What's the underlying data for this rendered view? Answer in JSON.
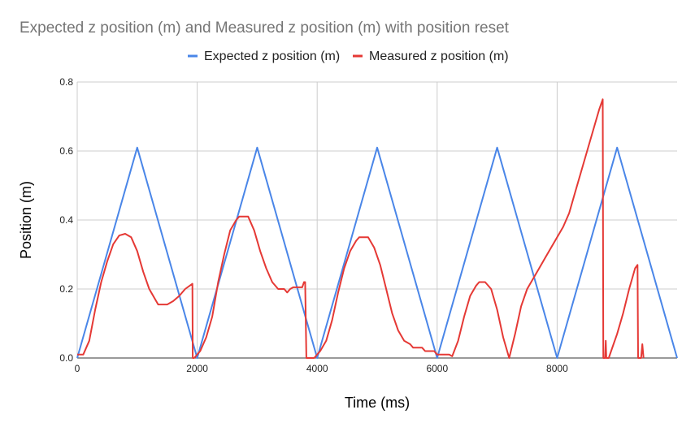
{
  "chart_data": {
    "type": "line",
    "title": "Expected z position (m) and Measured z position (m) with position reset",
    "xlabel": "Time (ms)",
    "ylabel": "Position (m)",
    "xlim": [
      0,
      10000
    ],
    "ylim": [
      0,
      0.8
    ],
    "x_ticks": [
      0,
      2000,
      4000,
      6000,
      8000
    ],
    "y_ticks": [
      0.0,
      0.2,
      0.4,
      0.6,
      0.8
    ],
    "x_tick_labels": [
      "0",
      "2000",
      "4000",
      "6000",
      "8000"
    ],
    "y_tick_labels": [
      "0.0",
      "0.2",
      "0.4",
      "0.6",
      "0.8"
    ],
    "grid": true,
    "legend_position": "top",
    "series": [
      {
        "name": "Expected z position (m)",
        "color": "#4a86e8",
        "points": [
          [
            0,
            0.0
          ],
          [
            1000,
            0.61
          ],
          [
            2000,
            0.0
          ],
          [
            3000,
            0.61
          ],
          [
            4000,
            0.0
          ],
          [
            5000,
            0.61
          ],
          [
            6000,
            0.0
          ],
          [
            7000,
            0.61
          ],
          [
            8000,
            0.0
          ],
          [
            9000,
            0.61
          ],
          [
            10000,
            0.0
          ]
        ]
      },
      {
        "name": "Measured z position (m)",
        "color": "#e53935",
        "points": [
          [
            0,
            0.01
          ],
          [
            100,
            0.01
          ],
          [
            200,
            0.05
          ],
          [
            300,
            0.14
          ],
          [
            400,
            0.22
          ],
          [
            500,
            0.28
          ],
          [
            600,
            0.33
          ],
          [
            700,
            0.355
          ],
          [
            800,
            0.36
          ],
          [
            900,
            0.35
          ],
          [
            1000,
            0.31
          ],
          [
            1100,
            0.25
          ],
          [
            1200,
            0.2
          ],
          [
            1300,
            0.17
          ],
          [
            1350,
            0.155
          ],
          [
            1500,
            0.155
          ],
          [
            1550,
            0.16
          ],
          [
            1600,
            0.165
          ],
          [
            1700,
            0.18
          ],
          [
            1800,
            0.2
          ],
          [
            1920,
            0.215
          ],
          [
            1925,
            0.0
          ],
          [
            1950,
            0.0
          ],
          [
            2050,
            0.02
          ],
          [
            2150,
            0.06
          ],
          [
            2250,
            0.12
          ],
          [
            2350,
            0.22
          ],
          [
            2450,
            0.3
          ],
          [
            2550,
            0.37
          ],
          [
            2650,
            0.4
          ],
          [
            2700,
            0.41
          ],
          [
            2850,
            0.41
          ],
          [
            2950,
            0.37
          ],
          [
            3050,
            0.31
          ],
          [
            3150,
            0.26
          ],
          [
            3250,
            0.22
          ],
          [
            3350,
            0.2
          ],
          [
            3450,
            0.2
          ],
          [
            3500,
            0.19
          ],
          [
            3550,
            0.2
          ],
          [
            3600,
            0.205
          ],
          [
            3750,
            0.205
          ],
          [
            3780,
            0.22
          ],
          [
            3800,
            0.22
          ],
          [
            3820,
            0.0
          ],
          [
            3950,
            0.0
          ],
          [
            4050,
            0.02
          ],
          [
            4150,
            0.05
          ],
          [
            4250,
            0.11
          ],
          [
            4350,
            0.19
          ],
          [
            4450,
            0.26
          ],
          [
            4550,
            0.31
          ],
          [
            4650,
            0.34
          ],
          [
            4700,
            0.35
          ],
          [
            4850,
            0.35
          ],
          [
            4950,
            0.32
          ],
          [
            5050,
            0.27
          ],
          [
            5150,
            0.2
          ],
          [
            5250,
            0.13
          ],
          [
            5350,
            0.08
          ],
          [
            5450,
            0.05
          ],
          [
            5550,
            0.04
          ],
          [
            5600,
            0.03
          ],
          [
            5750,
            0.03
          ],
          [
            5800,
            0.02
          ],
          [
            5950,
            0.02
          ],
          [
            6000,
            0.01
          ],
          [
            6200,
            0.01
          ],
          [
            6250,
            0.005
          ],
          [
            6350,
            0.05
          ],
          [
            6450,
            0.12
          ],
          [
            6550,
            0.18
          ],
          [
            6650,
            0.21
          ],
          [
            6700,
            0.22
          ],
          [
            6800,
            0.22
          ],
          [
            6900,
            0.2
          ],
          [
            7000,
            0.14
          ],
          [
            7100,
            0.06
          ],
          [
            7200,
            0.0
          ],
          [
            7300,
            0.07
          ],
          [
            7400,
            0.15
          ],
          [
            7500,
            0.2
          ],
          [
            7600,
            0.23
          ],
          [
            7700,
            0.26
          ],
          [
            7800,
            0.29
          ],
          [
            7900,
            0.32
          ],
          [
            8000,
            0.35
          ],
          [
            8100,
            0.38
          ],
          [
            8200,
            0.42
          ],
          [
            8300,
            0.48
          ],
          [
            8400,
            0.54
          ],
          [
            8500,
            0.6
          ],
          [
            8600,
            0.66
          ],
          [
            8700,
            0.72
          ],
          [
            8760,
            0.75
          ],
          [
            8770,
            0.0
          ],
          [
            8800,
            0.0
          ],
          [
            8810,
            0.05
          ],
          [
            8820,
            0.0
          ],
          [
            8860,
            0.0
          ],
          [
            8900,
            0.02
          ],
          [
            9000,
            0.07
          ],
          [
            9100,
            0.13
          ],
          [
            9200,
            0.2
          ],
          [
            9300,
            0.26
          ],
          [
            9340,
            0.27
          ],
          [
            9350,
            0.0
          ],
          [
            9400,
            0.0
          ],
          [
            9420,
            0.04
          ],
          [
            9440,
            0.0
          ]
        ]
      }
    ]
  }
}
